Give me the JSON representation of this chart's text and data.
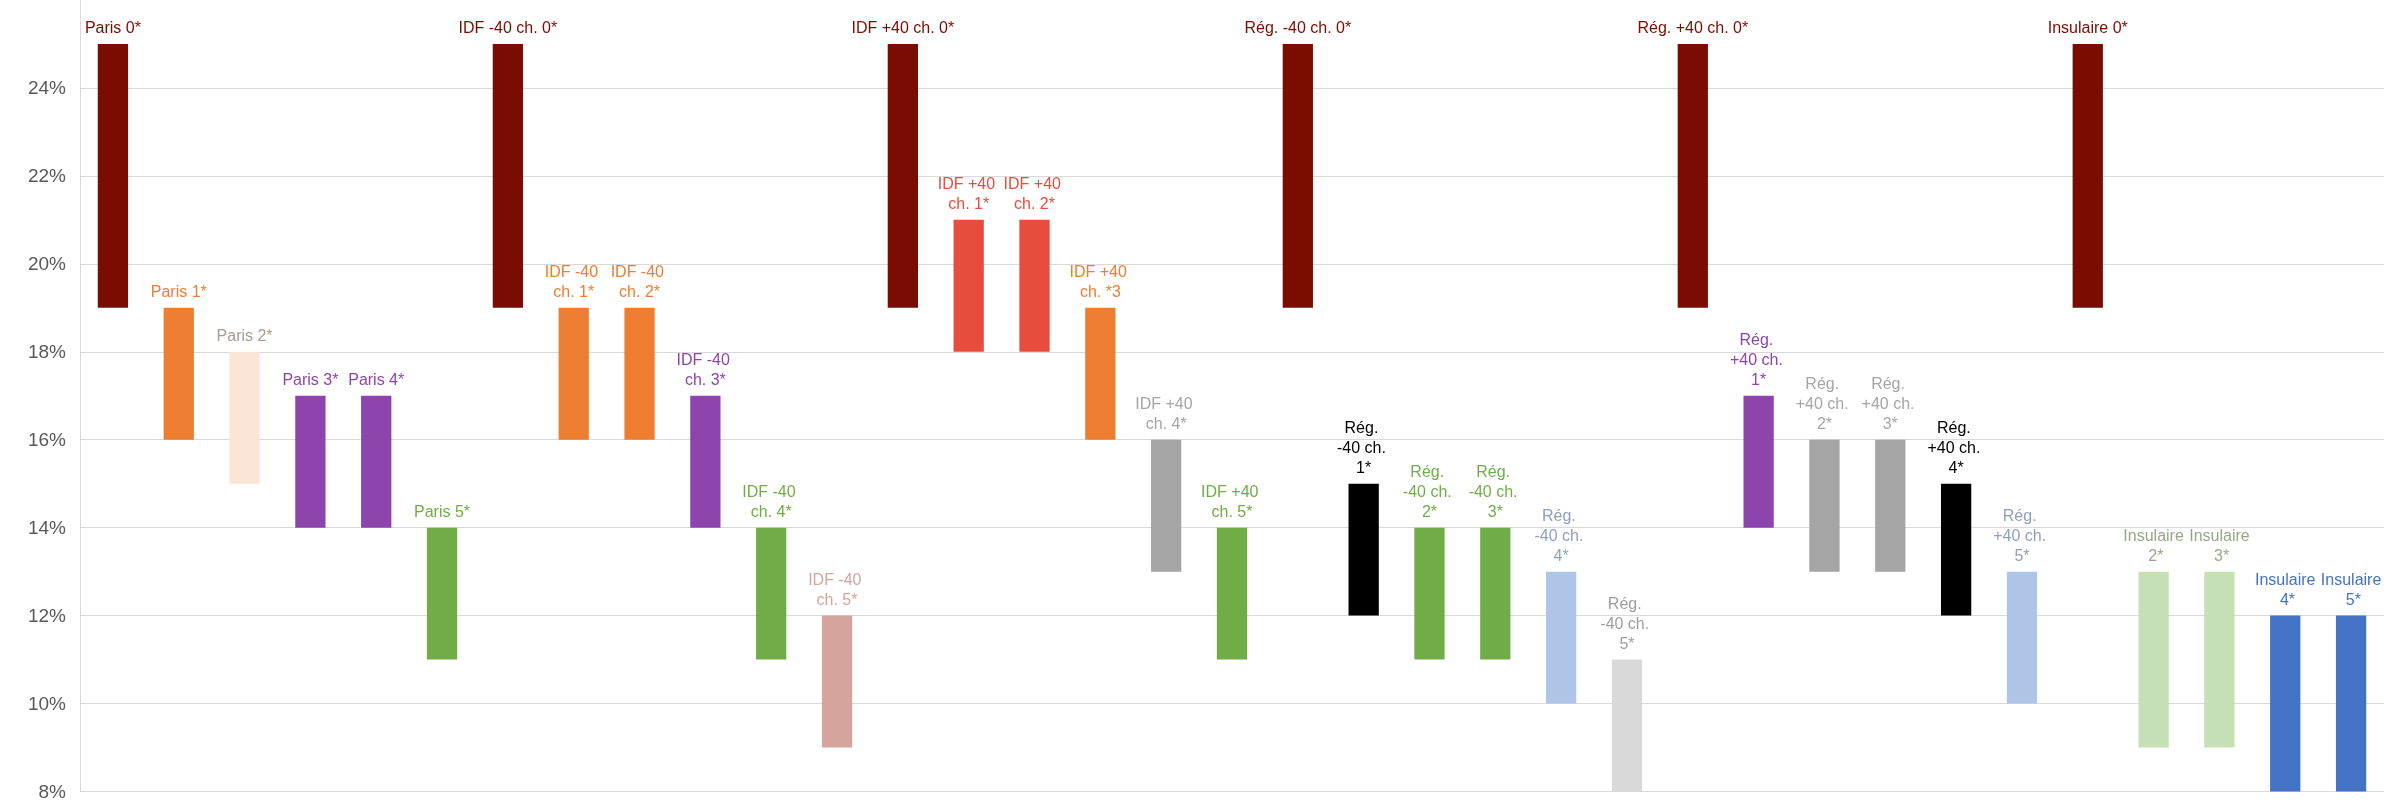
{
  "chart_data": {
    "type": "bar",
    "categories": [
      "Paris 0*",
      "Paris 1*",
      "Paris 2*",
      "Paris 3*",
      "Paris 4*",
      "Paris 5*",
      "IDF -40 ch. 0*",
      "IDF -40 ch. 1*",
      "IDF -40 ch. 2*",
      "IDF -40 ch. 3*",
      "IDF -40 ch. 4*",
      "IDF -40 ch. 5*",
      "IDF +40 ch. 0*",
      "IDF +40 ch. 1*",
      "IDF +40 ch. 2*",
      "IDF +40 ch. *3",
      "IDF +40 ch. 4*",
      "IDF +40 ch. 5*",
      "Rég. -40 ch. 0*",
      "Rég. -40 ch. 1*",
      "Rég. -40 ch. 2*",
      "Rég. -40 ch. 3*",
      "Rég. -40 ch. 4*",
      "Rég. -40 ch. 5*",
      "Rég. +40 ch. 0*",
      "Rég. +40 ch. 1*",
      "Rég. +40 ch. 2*",
      "Rég. +40 ch. 3*",
      "Rég. +40 ch. 4*",
      "Rég. +40 ch. 5*",
      "Insulaire 0*",
      "Insulaire 2*",
      "Insulaire 3*",
      "Insulaire 4*",
      "Insulaire 5*"
    ],
    "base": [
      19,
      16,
      15,
      14,
      14,
      11,
      19,
      16,
      16,
      14,
      11,
      9,
      19,
      18,
      18,
      16,
      13,
      11,
      19,
      12,
      11,
      11,
      10,
      8,
      19,
      14,
      13,
      13,
      12,
      10,
      19,
      9,
      9,
      8,
      8
    ],
    "values": [
      6,
      3,
      3,
      3,
      3,
      3,
      6,
      3,
      3,
      3,
      3,
      3,
      6,
      3,
      3,
      3,
      3,
      3,
      6,
      3,
      3,
      3,
      3,
      3,
      6,
      3,
      3,
      3,
      3,
      3,
      6,
      4,
      4,
      4,
      4
    ],
    "colors": [
      "#7b0c02",
      "#ed7d31",
      "#fbe5d6",
      "#8e44ad",
      "#8e44ad",
      "#70ad47",
      "#7b0c02",
      "#ed7d31",
      "#ed7d31",
      "#8e44ad",
      "#70ad47",
      "#d5a49c",
      "#7b0c02",
      "#e74c3c",
      "#e74c3c",
      "#ed7d31",
      "#a5a5a5",
      "#70ad47",
      "#7b0c02",
      "#000000",
      "#70ad47",
      "#70ad47",
      "#aec5e8",
      "#d9d9d9",
      "#7b0c02",
      "#8e44ad",
      "#a5a5a5",
      "#a5a5a5",
      "#000000",
      "#aec5e8",
      "#7b0c02",
      "#c5e0b4",
      "#c5e0b4",
      "#4472c4",
      "#4472c4"
    ],
    "ylim": [
      8,
      26
    ],
    "yticks": [
      {
        "value": 8,
        "label": "8%"
      },
      {
        "value": 10,
        "label": "10%"
      },
      {
        "value": 12,
        "label": "12%"
      },
      {
        "value": 14,
        "label": "14%"
      },
      {
        "value": 16,
        "label": "16%"
      },
      {
        "value": 18,
        "label": "18%"
      },
      {
        "value": 20,
        "label": "20%"
      },
      {
        "value": 22,
        "label": "22%"
      },
      {
        "value": 24,
        "label": "24%"
      }
    ],
    "grid": "y",
    "tick_labels": "y"
  }
}
